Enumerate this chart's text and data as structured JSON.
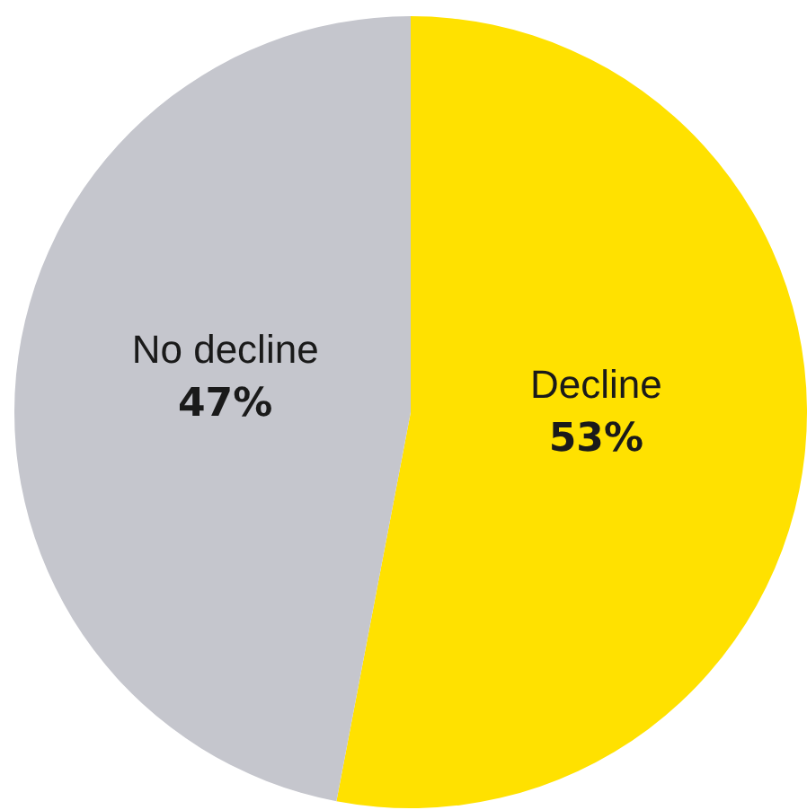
{
  "chart_data": {
    "type": "pie",
    "categories": [
      "Decline",
      "No decline"
    ],
    "values": [
      53,
      47
    ],
    "colors": [
      "#ffe100",
      "#c5c6cd"
    ],
    "value_labels": [
      "53%",
      "47%"
    ]
  }
}
